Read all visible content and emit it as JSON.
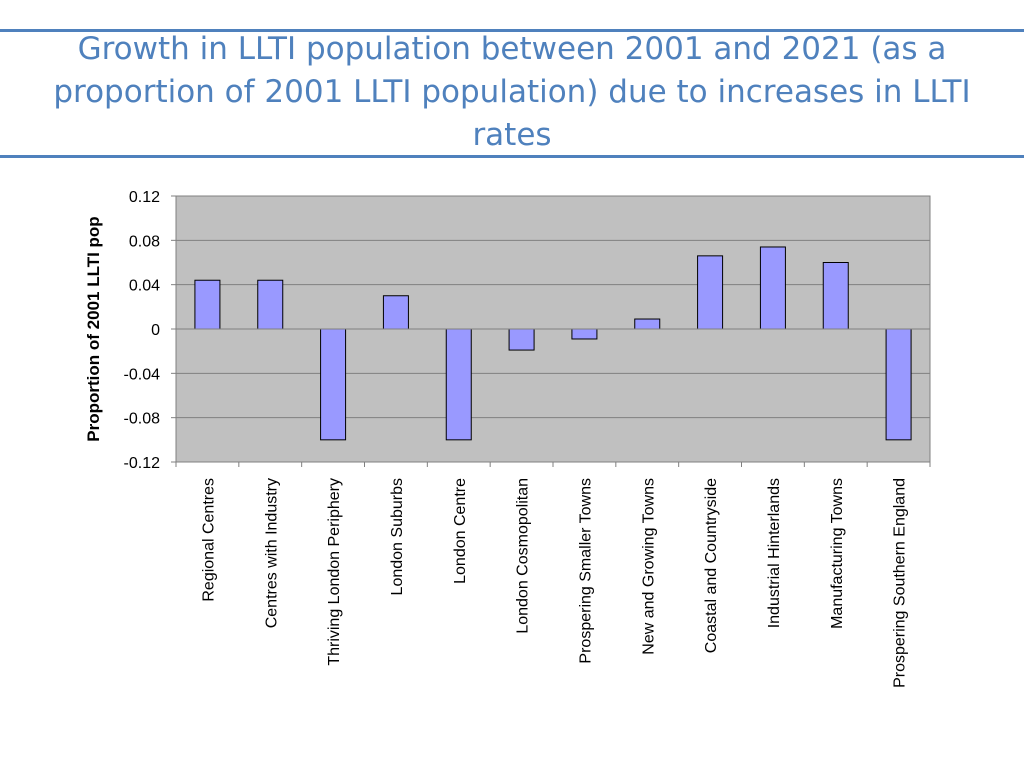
{
  "slide": {
    "title": "Growth in LLTI population between 2001 and 2021 (as a proportion of 2001 LLTI population) due to increases in LLTI rates"
  },
  "colors": {
    "title": "#4f81bd",
    "rule": "#4f81bd",
    "plot_bg": "#c0c0c0",
    "bar_fill": "#9999ff",
    "bar_stroke": "#000000",
    "grid": "#808080",
    "text": "#000000"
  },
  "chart_data": {
    "type": "bar",
    "title": "",
    "xlabel": "",
    "ylabel": "Proportion of 2001 LLTI pop",
    "ylim": [
      -0.12,
      0.12
    ],
    "yticks": [
      0.12,
      0.08,
      0.04,
      0,
      -0.04,
      -0.08,
      -0.12
    ],
    "ytick_labels": [
      "0.12",
      "0.08",
      "0.04",
      "0",
      "-0.04",
      "-0.08",
      "-0.12"
    ],
    "grid": true,
    "legend": "none",
    "categories": [
      "Regional Centres",
      "Centres with Industry",
      "Thriving London Periphery",
      "London Suburbs",
      "London Centre",
      "London Cosmopolitan",
      "Prospering Smaller Towns",
      "New and Growing Towns",
      "Coastal and Countryside",
      "Industrial Hinterlands",
      "Manufacturing Towns",
      "Prospering Southern England"
    ],
    "values": [
      0.044,
      0.044,
      -0.1,
      0.03,
      -0.1,
      -0.019,
      -0.009,
      0.009,
      0.066,
      0.074,
      0.06,
      -0.1
    ]
  }
}
